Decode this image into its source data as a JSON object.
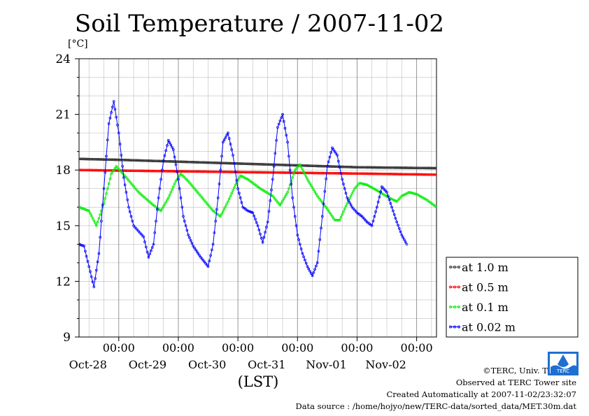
{
  "chart_data": {
    "type": "line",
    "title": "Soil Temperature / 2007-11-02",
    "ylabel": "[°C]",
    "xlabel": "(LST)",
    "ylim": [
      9,
      24
    ],
    "yticks": [
      "24",
      "21",
      "18",
      "15",
      "12",
      "9"
    ],
    "xticks": [
      {
        "time": "00:00",
        "date": "Oct-28"
      },
      {
        "time": "00:00",
        "date": "Oct-29"
      },
      {
        "time": "00:00",
        "date": "Oct-30"
      },
      {
        "time": "00:00",
        "date": "Oct-31"
      },
      {
        "time": "00:00",
        "date": "Nov-01"
      },
      {
        "time": "00:00",
        "date": "Nov-02"
      }
    ],
    "x_unit": "hours",
    "xlim": [
      -16,
      128
    ],
    "legend_position": "right",
    "grid": true,
    "series": [
      {
        "name": "at 1.0 m",
        "color": "#333333",
        "points": [
          [
            -16,
            18.6
          ],
          [
            0,
            18.55
          ],
          [
            24,
            18.45
          ],
          [
            48,
            18.35
          ],
          [
            72,
            18.25
          ],
          [
            96,
            18.15
          ],
          [
            128,
            18.1
          ]
        ]
      },
      {
        "name": "at 0.5 m",
        "color": "#ff0000",
        "points": [
          [
            -16,
            18.0
          ],
          [
            0,
            17.97
          ],
          [
            24,
            17.93
          ],
          [
            48,
            17.89
          ],
          [
            72,
            17.85
          ],
          [
            96,
            17.81
          ],
          [
            128,
            17.75
          ]
        ]
      },
      {
        "name": "at 0.1 m",
        "color": "#00ee00",
        "points": [
          [
            -16,
            16.0
          ],
          [
            -12,
            15.8
          ],
          [
            -9,
            15.0
          ],
          [
            -6,
            16.2
          ],
          [
            -3,
            17.8
          ],
          [
            -1,
            18.2
          ],
          [
            3,
            17.6
          ],
          [
            8,
            16.8
          ],
          [
            14,
            16.1
          ],
          [
            17,
            15.8
          ],
          [
            20,
            16.5
          ],
          [
            23,
            17.4
          ],
          [
            25,
            17.8
          ],
          [
            28,
            17.4
          ],
          [
            33,
            16.6
          ],
          [
            38,
            15.8
          ],
          [
            41,
            15.5
          ],
          [
            44,
            16.3
          ],
          [
            47,
            17.2
          ],
          [
            49,
            17.7
          ],
          [
            52,
            17.5
          ],
          [
            57,
            17.0
          ],
          [
            62,
            16.6
          ],
          [
            65,
            16.1
          ],
          [
            68,
            16.8
          ],
          [
            71,
            18.0
          ],
          [
            73,
            18.3
          ],
          [
            76,
            17.5
          ],
          [
            80,
            16.6
          ],
          [
            84,
            15.9
          ],
          [
            87,
            15.3
          ],
          [
            89,
            15.3
          ],
          [
            92,
            16.2
          ],
          [
            95,
            17.0
          ],
          [
            97,
            17.3
          ],
          [
            100,
            17.2
          ],
          [
            104,
            16.9
          ],
          [
            109,
            16.5
          ],
          [
            112,
            16.3
          ],
          [
            114,
            16.6
          ],
          [
            117,
            16.8
          ],
          [
            120,
            16.7
          ],
          [
            124,
            16.4
          ],
          [
            128,
            16.0
          ]
        ]
      },
      {
        "name": "at 0.02 m",
        "color": "#0000ff",
        "points": [
          [
            -16,
            14.0
          ],
          [
            -14,
            13.9
          ],
          [
            -12,
            12.8
          ],
          [
            -10,
            11.7
          ],
          [
            -8,
            13.5
          ],
          [
            -6,
            17.0
          ],
          [
            -4,
            20.5
          ],
          [
            -2,
            21.7
          ],
          [
            0,
            20.0
          ],
          [
            2,
            17.6
          ],
          [
            4,
            16.0
          ],
          [
            6,
            15.0
          ],
          [
            8,
            14.7
          ],
          [
            10,
            14.4
          ],
          [
            12,
            13.3
          ],
          [
            14,
            14.0
          ],
          [
            16,
            16.5
          ],
          [
            18,
            18.5
          ],
          [
            20,
            19.6
          ],
          [
            22,
            19.1
          ],
          [
            24,
            17.5
          ],
          [
            26,
            15.5
          ],
          [
            28,
            14.5
          ],
          [
            30,
            13.9
          ],
          [
            33,
            13.3
          ],
          [
            36,
            12.8
          ],
          [
            38,
            14.0
          ],
          [
            40,
            16.5
          ],
          [
            42,
            19.5
          ],
          [
            44,
            20.0
          ],
          [
            46,
            18.8
          ],
          [
            48,
            17.0
          ],
          [
            50,
            16.0
          ],
          [
            52,
            15.8
          ],
          [
            54,
            15.7
          ],
          [
            56,
            15.0
          ],
          [
            58,
            14.1
          ],
          [
            60,
            15.2
          ],
          [
            62,
            17.5
          ],
          [
            64,
            20.3
          ],
          [
            66,
            21.0
          ],
          [
            68,
            19.5
          ],
          [
            70,
            16.5
          ],
          [
            72,
            14.5
          ],
          [
            74,
            13.5
          ],
          [
            76,
            12.8
          ],
          [
            78,
            12.3
          ],
          [
            80,
            13.0
          ],
          [
            82,
            15.5
          ],
          [
            84,
            18.2
          ],
          [
            86,
            19.2
          ],
          [
            88,
            18.8
          ],
          [
            90,
            17.5
          ],
          [
            92,
            16.5
          ],
          [
            94,
            16.0
          ],
          [
            96,
            15.7
          ],
          [
            98,
            15.5
          ],
          [
            100,
            15.2
          ],
          [
            102,
            15.0
          ],
          [
            104,
            16.0
          ],
          [
            106,
            17.1
          ],
          [
            108,
            16.8
          ],
          [
            110,
            16.0
          ],
          [
            112,
            15.2
          ],
          [
            114,
            14.5
          ],
          [
            116,
            14.0
          ]
        ]
      }
    ]
  },
  "credits": {
    "copyright": "©TERC, Univ. Tsukuba",
    "observed": "Observed at TERC Tower site",
    "created": "Created Automatically at 2007-11-02/23:32:07",
    "source": "Data source : /home/hojyo/new/TERC-data/sorted_data/MET.30m.dat",
    "logo_text": "TERC"
  }
}
